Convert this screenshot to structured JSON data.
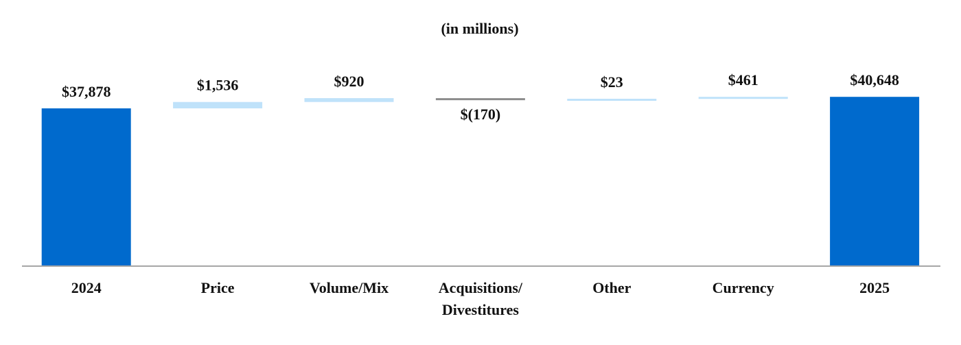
{
  "chart_data": {
    "type": "bar",
    "subtype": "waterfall",
    "title": "",
    "subtitle": "(in millions)",
    "xlabel": "",
    "ylabel": "",
    "grid": false,
    "legend": "none",
    "y_axis_visible": false,
    "categories": [
      [
        "2024"
      ],
      [
        "Price"
      ],
      [
        "Volume/Mix"
      ],
      [
        "Acquisitions/",
        "Divestitures"
      ],
      [
        "Other"
      ],
      [
        "Currency"
      ],
      [
        "2025"
      ]
    ],
    "bars": [
      {
        "kind": "total",
        "value": 37878,
        "label": "$37,878"
      },
      {
        "kind": "change",
        "value": 1536,
        "label": "$1,536"
      },
      {
        "kind": "change",
        "value": 920,
        "label": "$920"
      },
      {
        "kind": "change",
        "value": -170,
        "label": "$(170)"
      },
      {
        "kind": "change",
        "value": 23,
        "label": "$23"
      },
      {
        "kind": "change",
        "value": 461,
        "label": "$461"
      },
      {
        "kind": "total",
        "value": 40648,
        "label": "$40,648"
      }
    ],
    "colors": {
      "total": "#006ACD",
      "increase": "#BFE2FA",
      "decrease": "#8C8C8C",
      "axis": "#A6A6A6"
    }
  }
}
